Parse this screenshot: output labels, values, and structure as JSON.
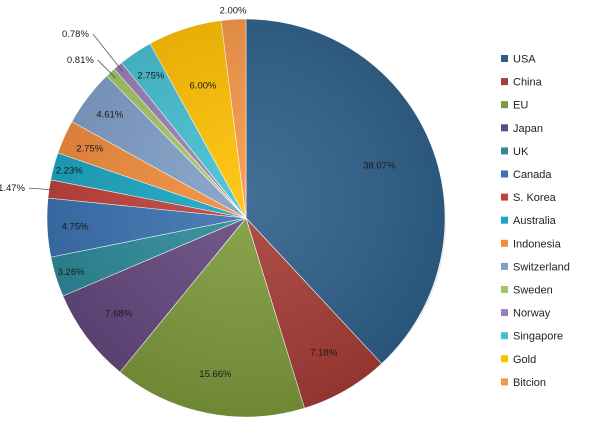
{
  "chart_data": {
    "type": "pie",
    "title": "",
    "legend_position": "right",
    "start_angle_deg": 0,
    "direction": "clockwise",
    "slices": [
      {
        "label": "USA",
        "value": 38.07,
        "value_label": "38.07%",
        "color": "#2e5f8a"
      },
      {
        "label": "China",
        "value": 7.18,
        "value_label": "7.18%",
        "color": "#a63c36"
      },
      {
        "label": "EU",
        "value": 15.66,
        "value_label": "15.66%",
        "color": "#7d9a3c"
      },
      {
        "label": "Japan",
        "value": 7.68,
        "value_label": "7.68%",
        "color": "#64487f"
      },
      {
        "label": "UK",
        "value": 3.26,
        "value_label": "3.26%",
        "color": "#2c8a99"
      },
      {
        "label": "Canada",
        "value": 4.75,
        "value_label": "4.75%",
        "color": "#3a72b0"
      },
      {
        "label": "S. Korea",
        "value": 1.47,
        "value_label": "1.47%",
        "color": "#c0403a"
      },
      {
        "label": "Australia",
        "value": 2.23,
        "value_label": "2.23%",
        "color": "#1aa6c2"
      },
      {
        "label": "Indonesia",
        "value": 2.75,
        "value_label": "2.75%",
        "color": "#f28c3c"
      },
      {
        "label": "Switzerland",
        "value": 4.61,
        "value_label": "4.61%",
        "color": "#7f9fc8"
      },
      {
        "label": "Sweden",
        "value": 0.81,
        "value_label": "0.81%",
        "color": "#a3c667"
      },
      {
        "label": "Norway",
        "value": 0.78,
        "value_label": "0.78%",
        "color": "#9a7fb8"
      },
      {
        "label": "Singapore",
        "value": 2.75,
        "value_label": "2.75%",
        "color": "#45bfd2"
      },
      {
        "label": "Gold",
        "value": 6.0,
        "value_label": "6.00%",
        "color": "#ffc000"
      },
      {
        "label": "Bitcion",
        "value": 2.0,
        "value_label": "2.00%",
        "color": "#f79646"
      }
    ]
  }
}
